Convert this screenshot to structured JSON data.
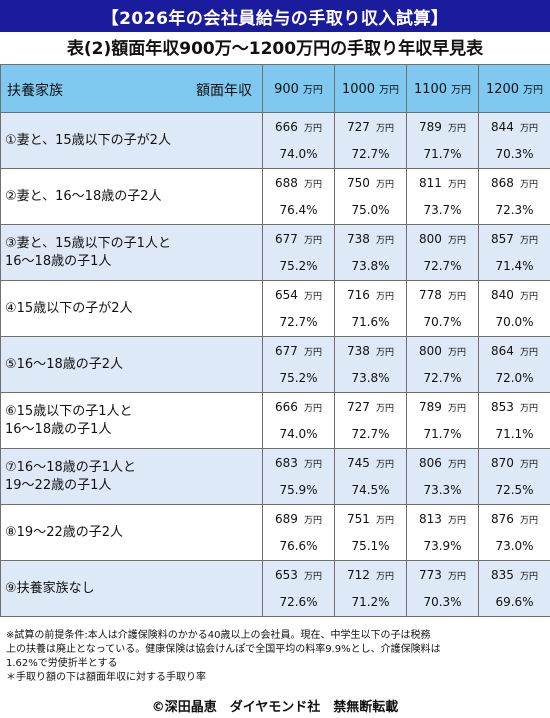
{
  "banner": "【2026年の会社員給与の手取り収入試算】",
  "title": "表(2)額面年収900万～1200万円の手取り年収早見表",
  "header": {
    "family_label": "扶養家族",
    "amount_label": "額面年収",
    "columns": [
      {
        "num": "900",
        "unit": "万円"
      },
      {
        "num": "1000",
        "unit": "万円"
      },
      {
        "num": "1100",
        "unit": "万円"
      },
      {
        "num": "1200",
        "unit": "万円"
      }
    ]
  },
  "rows": [
    {
      "label1": "①妻と、15歳以下の子が2人",
      "label2": "",
      "cells": [
        {
          "v": "666",
          "u": "万円",
          "p": "74.0%"
        },
        {
          "v": "727",
          "u": "万円",
          "p": "72.7%"
        },
        {
          "v": "789",
          "u": "万円",
          "p": "71.7%"
        },
        {
          "v": "844",
          "u": "万円",
          "p": "70.3%"
        }
      ]
    },
    {
      "label1": "②妻と、16～18歳の子2人",
      "label2": "",
      "cells": [
        {
          "v": "688",
          "u": "万円",
          "p": "76.4%"
        },
        {
          "v": "750",
          "u": "万円",
          "p": "75.0%"
        },
        {
          "v": "811",
          "u": "万円",
          "p": "73.7%"
        },
        {
          "v": "868",
          "u": "万円",
          "p": "72.3%"
        }
      ]
    },
    {
      "label1": "③妻と、15歳以下の子1人と",
      "label2": "16～18歳の子1人",
      "cells": [
        {
          "v": "677",
          "u": "万円",
          "p": "75.2%"
        },
        {
          "v": "738",
          "u": "万円",
          "p": "73.8%"
        },
        {
          "v": "800",
          "u": "万円",
          "p": "72.7%"
        },
        {
          "v": "857",
          "u": "万円",
          "p": "71.4%"
        }
      ]
    },
    {
      "label1": "④15歳以下の子が2人",
      "label2": "",
      "cells": [
        {
          "v": "654",
          "u": "万円",
          "p": "72.7%"
        },
        {
          "v": "716",
          "u": "万円",
          "p": "71.6%"
        },
        {
          "v": "778",
          "u": "万円",
          "p": "70.7%"
        },
        {
          "v": "840",
          "u": "万円",
          "p": "70.0%"
        }
      ]
    },
    {
      "label1": "⑤16～18歳の子2人",
      "label2": "",
      "cells": [
        {
          "v": "677",
          "u": "万円",
          "p": "75.2%"
        },
        {
          "v": "738",
          "u": "万円",
          "p": "73.8%"
        },
        {
          "v": "800",
          "u": "万円",
          "p": "72.7%"
        },
        {
          "v": "864",
          "u": "万円",
          "p": "72.0%"
        }
      ]
    },
    {
      "label1": "⑥15歳以下の子1人と",
      "label2": "16～18歳の子1人",
      "cells": [
        {
          "v": "666",
          "u": "万円",
          "p": "74.0%"
        },
        {
          "v": "727",
          "u": "万円",
          "p": "72.7%"
        },
        {
          "v": "789",
          "u": "万円",
          "p": "71.7%"
        },
        {
          "v": "853",
          "u": "万円",
          "p": "71.1%"
        }
      ]
    },
    {
      "label1": "⑦16～18歳の子1人と",
      "label2": "19～22歳の子1人",
      "cells": [
        {
          "v": "683",
          "u": "万円",
          "p": "75.9%"
        },
        {
          "v": "745",
          "u": "万円",
          "p": "74.5%"
        },
        {
          "v": "806",
          "u": "万円",
          "p": "73.3%"
        },
        {
          "v": "870",
          "u": "万円",
          "p": "72.5%"
        }
      ]
    },
    {
      "label1": "⑧19～22歳の子2人",
      "label2": "",
      "cells": [
        {
          "v": "689",
          "u": "万円",
          "p": "76.6%"
        },
        {
          "v": "751",
          "u": "万円",
          "p": "75.1%"
        },
        {
          "v": "813",
          "u": "万円",
          "p": "73.9%"
        },
        {
          "v": "876",
          "u": "万円",
          "p": "73.0%"
        }
      ]
    },
    {
      "label1": "⑨扶養家族なし",
      "label2": "",
      "cells": [
        {
          "v": "653",
          "u": "万円",
          "p": "72.6%"
        },
        {
          "v": "712",
          "u": "万円",
          "p": "71.2%"
        },
        {
          "v": "773",
          "u": "万円",
          "p": "70.3%"
        },
        {
          "v": "835",
          "u": "万円",
          "p": "69.6%"
        }
      ]
    }
  ],
  "notes": [
    "※試算の前提条件:本人は介護保険料のかかる40歳以上の会社員。現在、中学生以下の子は税務",
    "上の扶養は廃止となっている。健康保険は協会けんぽで全国平均の料率9.9%とし、介護保険料は",
    "1.62%で労使折半とする",
    "＊手取り額の下は額面年収に対する手取り率"
  ],
  "credit": "©深田晶恵　ダイヤモンド社　禁無断転載"
}
